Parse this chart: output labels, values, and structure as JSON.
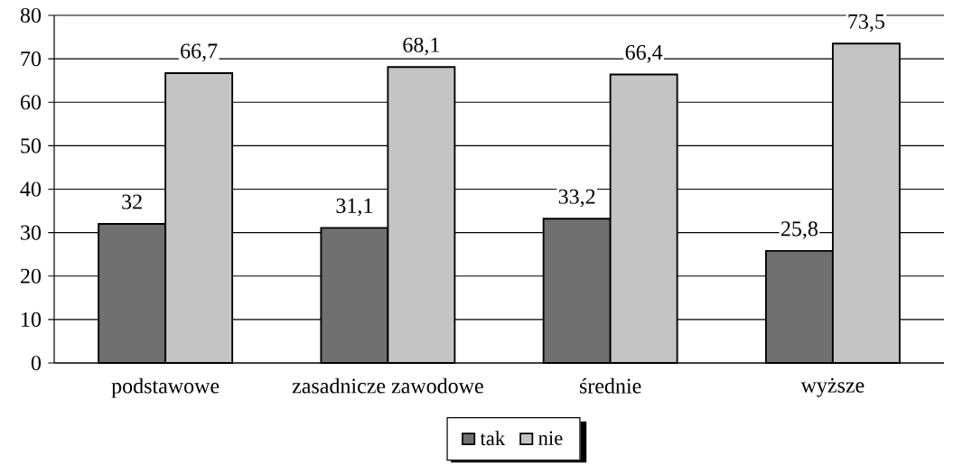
{
  "chart_data": {
    "type": "bar",
    "categories": [
      "podstawowe",
      "zasadnicze zawodowe",
      "średnie",
      "wyższe"
    ],
    "series": [
      {
        "name": "tak",
        "color": "#707070",
        "values": [
          32,
          31.1,
          33.2,
          25.8
        ],
        "value_labels": [
          "32",
          "31,1",
          "33,2",
          "25,8"
        ]
      },
      {
        "name": "nie",
        "color": "#c4c4c4",
        "values": [
          66.7,
          68.1,
          66.4,
          73.5
        ],
        "value_labels": [
          "66,7",
          "68,1",
          "66,4",
          "73,5"
        ]
      }
    ],
    "ylim": [
      0,
      80
    ],
    "yticks": [
      0,
      10,
      20,
      30,
      40,
      50,
      60,
      70,
      80
    ],
    "grid": "y",
    "legend": "bottom"
  }
}
